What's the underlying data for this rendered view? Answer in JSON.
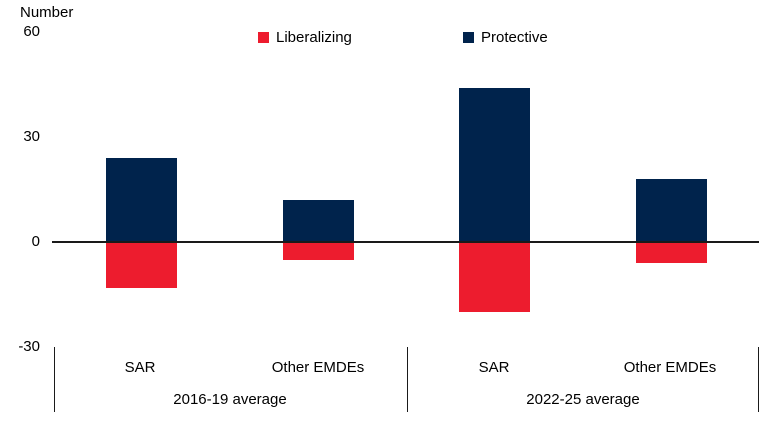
{
  "chart_data": {
    "type": "bar",
    "stacked": true,
    "ylabel": "Number",
    "ylim": [
      -30,
      60
    ],
    "yticks": [
      60,
      30,
      0,
      -30
    ],
    "grid": false,
    "legend_position": "top",
    "categories": [
      "SAR",
      "Other EMDEs",
      "SAR",
      "Other EMDEs"
    ],
    "groups": [
      {
        "label": "2016-19 average",
        "categories": [
          "SAR",
          "Other EMDEs"
        ]
      },
      {
        "label": "2022-25 average",
        "categories": [
          "SAR",
          "Other EMDEs"
        ]
      }
    ],
    "series": [
      {
        "name": "Liberalizing",
        "color": "#ed1c2e",
        "values": [
          -13,
          -5,
          -20,
          -6
        ]
      },
      {
        "name": "Protective",
        "color": "#00234c",
        "values": [
          24,
          12,
          44,
          18
        ]
      }
    ]
  }
}
